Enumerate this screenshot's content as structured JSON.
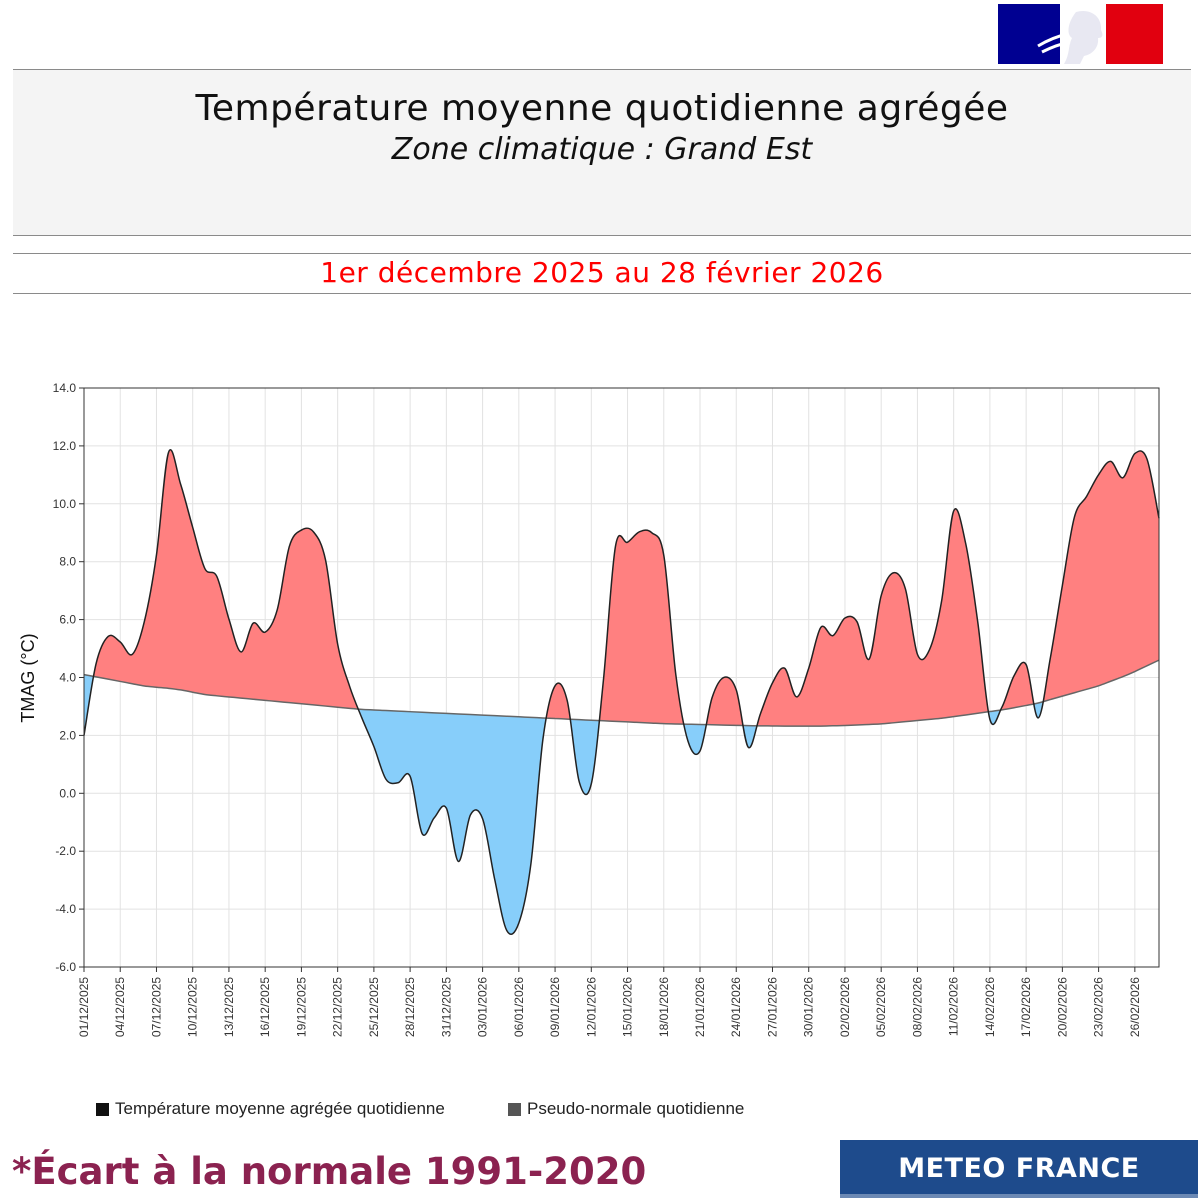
{
  "header": {
    "title": "Température moyenne quotidienne agrégée",
    "subtitle": "Zone climatique : Grand Est",
    "period": "1er décembre 2025 au 28 février 2026"
  },
  "footer": {
    "note": "*Écart à la normale 1991-2020",
    "brand": "METEO FRANCE"
  },
  "colors": {
    "above_normal": "#ff8080",
    "below_normal": "#87cefa",
    "period_text": "#ff0000",
    "note_text": "#8b2250",
    "brand_bg": "#1e4b8c"
  },
  "chart_data": {
    "type": "area",
    "ylabel": "TMAG (°C)",
    "ylim": [
      -6,
      14
    ],
    "yticks": [
      "14.0",
      "12.0",
      "10.0",
      "8.0",
      "6.0",
      "4.0",
      "2.0",
      "0.0",
      "-2.0",
      "-4.0",
      "-6.0"
    ],
    "ytick_values": [
      14,
      12,
      10,
      8,
      6,
      4,
      2,
      0,
      -2,
      -4,
      -6
    ],
    "xtick_labels": [
      "01/12/2025",
      "04/12/2025",
      "07/12/2025",
      "10/12/2025",
      "13/12/2025",
      "16/12/2025",
      "19/12/2025",
      "22/12/2025",
      "25/12/2025",
      "28/12/2025",
      "31/12/2025",
      "03/01/2026",
      "06/01/2026",
      "09/01/2026",
      "12/01/2026",
      "15/01/2026",
      "18/01/2026",
      "21/01/2026",
      "24/01/2026",
      "27/01/2026",
      "30/01/2026",
      "02/02/2026",
      "05/02/2026",
      "08/02/2026",
      "11/02/2026",
      "14/02/2026",
      "17/02/2026",
      "20/02/2026",
      "23/02/2026",
      "26/02/2026"
    ],
    "grid": true,
    "series": [
      {
        "name": "Température moyenne agrégée  quotidienne",
        "values": [
          2.0,
          5.5,
          5.3,
          4.7,
          7.0,
          12.0,
          10.0,
          7.8,
          7.4,
          4.6,
          6.0,
          5.3,
          8.5,
          9.3,
          8.7,
          4.6,
          3.0,
          1.6,
          0.0,
          0.9,
          -1.9,
          0.1,
          -2.5,
          0.2,
          -2.8,
          -5.3,
          -3.6,
          2.5,
          4.5,
          0.4,
          0.3,
          8.5,
          8.7,
          9.3,
          8.2,
          2.2,
          1.2,
          3.8,
          4.2,
          1.4,
          3.5,
          4.4,
          3.0,
          5.8,
          5.4,
          6.5,
          4.6,
          7.7,
          7.5,
          4.3,
          5.5,
          9.9,
          8.0,
          2.5,
          3.1,
          5.0,
          2.4,
          6.0,
          9.5,
          10.5,
          11.6,
          10.8,
          12.4,
          9.5
        ],
        "color": "#222222"
      },
      {
        "name": "Pseudo-normale quotidienne",
        "values": [
          4.1,
          3.9,
          3.7,
          3.6,
          3.4,
          3.3,
          3.2,
          3.1,
          3.0,
          2.9,
          2.85,
          2.8,
          2.75,
          2.7,
          2.65,
          2.6,
          2.55,
          2.5,
          2.45,
          2.4,
          2.38,
          2.35,
          2.33,
          2.32,
          2.32,
          2.35,
          2.4,
          2.5,
          2.6,
          2.75,
          2.9,
          3.1,
          3.4,
          3.7,
          4.1,
          4.6
        ],
        "color": "#666666"
      }
    ],
    "legend": "bottom"
  }
}
